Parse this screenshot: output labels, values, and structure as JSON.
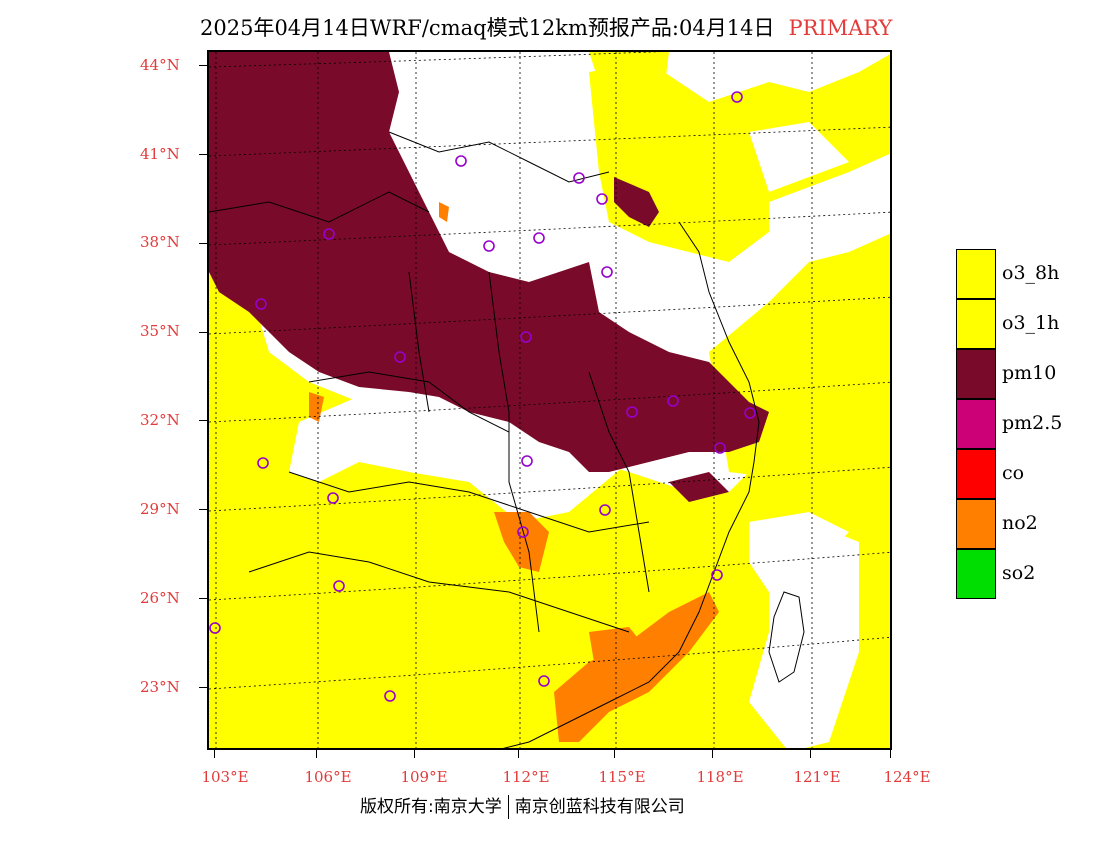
{
  "title": {
    "main": "2025年04月14日WRF/cmaq模式12km预报产品:04月14日",
    "tag": "PRIMARY"
  },
  "axes": {
    "latitudes": [
      "44°N",
      "41°N",
      "38°N",
      "35°N",
      "32°N",
      "29°N",
      "26°N",
      "23°N"
    ],
    "longitudes": [
      "103°E",
      "106°E",
      "109°E",
      "112°E",
      "115°E",
      "118°E",
      "121°E",
      "124°E"
    ]
  },
  "legend": [
    {
      "label": "o3_8h",
      "color": "#ffff00"
    },
    {
      "label": "o3_1h",
      "color": "#ffff00"
    },
    {
      "label": "pm10",
      "color": "#7a0a2a"
    },
    {
      "label": "pm2.5",
      "color": "#cc0077"
    },
    {
      "label": "co",
      "color": "#ff0000"
    },
    {
      "label": "no2",
      "color": "#ff7f00"
    },
    {
      "label": "so2",
      "color": "#00dd00"
    }
  ],
  "footer": {
    "left": "版权所有:南京大学",
    "right": "南京创蓝科技有限公司"
  },
  "colors": {
    "accent": "#e23b3b",
    "o3": "#ffff00",
    "pm10": "#7a0a2a",
    "no2": "#ff7f00",
    "station_marker": "#9900cc"
  }
}
